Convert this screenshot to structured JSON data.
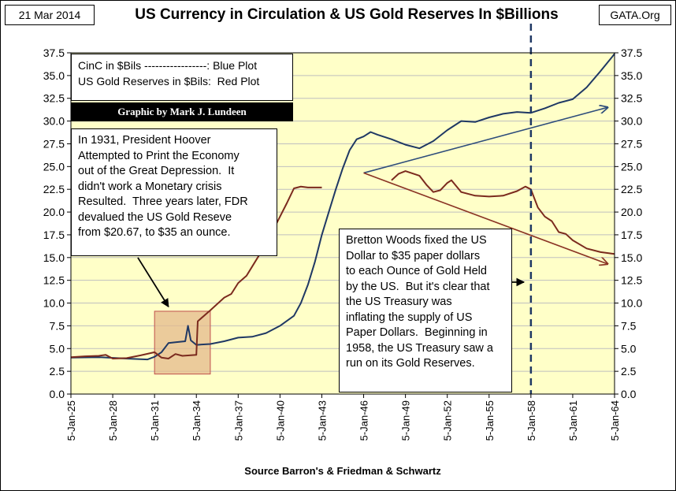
{
  "header": {
    "date": "21 Mar 2014",
    "title": "US Currency in Circulation & US Gold Reserves In $Billions",
    "source": "GATA.Org"
  },
  "legend_box": {
    "line1": "CinC in $Bils -----------------: Blue Plot",
    "line2": "US Gold Reserves in $Bils:  Red Plot"
  },
  "credit": "Graphic by Mark J. Lundeen",
  "annotation_hoover": {
    "lines": [
      "In 1931, President Hoover",
      "Attempted to Print the Economy",
      "out of the Great Depression.  It",
      "didn't work a Monetary crisis",
      "Resulted.  Three years later, FDR",
      "devalued the US Gold Reseve",
      "from $20.67, to $35 an ounce."
    ]
  },
  "annotation_bretton": {
    "lines": [
      "Bretton Woods fixed the US",
      "Dollar to $35 paper dollars",
      "to each Ounce of Gold Held",
      "by the US.  But it's clear that",
      "the US Treasury was",
      "inflating the supply of US",
      "Paper Dollars.  Beginning in",
      "1958, the US Treasury saw a",
      "run on its Gold Reserves."
    ]
  },
  "colors": {
    "plot_bg": "#ffffc8",
    "currency": "#1f3864",
    "gold": "#7b2a1e",
    "highlight_fill": "#e4b98c",
    "highlight_stroke": "#c0504d",
    "grid": "#bfbfbf",
    "trend_blue": "#2e4d7b",
    "trend_red": "#8a3324"
  },
  "chart_data": {
    "type": "line",
    "title": "US Currency in Circulation & US Gold Reserves In $Billions",
    "xlabel": "Source Barron's & Friedman & Schwartz",
    "ylabel": "",
    "x_range": [
      1925.0,
      1964.0
    ],
    "ylim": [
      0,
      37.5
    ],
    "y_ticks": [
      0.0,
      2.5,
      5.0,
      7.5,
      10.0,
      12.5,
      15.0,
      17.5,
      20.0,
      22.5,
      25.0,
      27.5,
      30.0,
      32.5,
      35.0,
      37.5
    ],
    "y_tick_labels": [
      "0.0",
      "2.5",
      "5.0",
      "7.5",
      "10.0",
      "12.5",
      "15.0",
      "17.5",
      "20.0",
      "22.5",
      "25.0",
      "27.5",
      "30.0",
      "32.5",
      "35.0",
      "37.5"
    ],
    "x_ticks": [
      1925,
      1928,
      1931,
      1934,
      1937,
      1940,
      1943,
      1946,
      1949,
      1952,
      1955,
      1958,
      1961,
      1964
    ],
    "x_tick_labels": [
      "5-Jan-25",
      "5-Jan-28",
      "5-Jan-31",
      "5-Jan-34",
      "5-Jan-37",
      "5-Jan-40",
      "5-Jan-43",
      "5-Jan-46",
      "5-Jan-49",
      "5-Jan-52",
      "5-Jan-55",
      "5-Jan-58",
      "5-Jan-61",
      "5-Jan-64"
    ],
    "grid": true,
    "series": [
      {
        "name": "CinC in $Bils",
        "color": "blue",
        "points": [
          [
            1925.0,
            4.0
          ],
          [
            1927.0,
            4.05
          ],
          [
            1929.0,
            3.9
          ],
          [
            1930.5,
            3.8
          ],
          [
            1931.0,
            4.1
          ],
          [
            1931.5,
            4.6
          ],
          [
            1932.0,
            5.6
          ],
          [
            1932.5,
            5.7
          ],
          [
            1933.2,
            5.8
          ],
          [
            1933.4,
            7.5
          ],
          [
            1933.6,
            5.9
          ],
          [
            1934.0,
            5.4
          ],
          [
            1935.0,
            5.5
          ],
          [
            1936.0,
            5.8
          ],
          [
            1937.0,
            6.2
          ],
          [
            1938.0,
            6.3
          ],
          [
            1939.0,
            6.7
          ],
          [
            1940.0,
            7.5
          ],
          [
            1941.0,
            8.6
          ],
          [
            1941.5,
            10.0
          ],
          [
            1942.0,
            12.0
          ],
          [
            1942.5,
            14.5
          ],
          [
            1943.0,
            17.5
          ],
          [
            1943.5,
            20.0
          ],
          [
            1944.0,
            22.5
          ],
          [
            1944.5,
            24.8
          ],
          [
            1945.0,
            26.8
          ],
          [
            1945.5,
            28.0
          ],
          [
            1946.0,
            28.3
          ],
          [
            1946.5,
            28.8
          ],
          [
            1947.0,
            28.5
          ],
          [
            1948.0,
            28.0
          ],
          [
            1949.0,
            27.4
          ],
          [
            1950.0,
            27.0
          ],
          [
            1951.0,
            27.8
          ],
          [
            1952.0,
            29.0
          ],
          [
            1953.0,
            30.0
          ],
          [
            1954.0,
            29.9
          ],
          [
            1955.0,
            30.4
          ],
          [
            1956.0,
            30.8
          ],
          [
            1957.0,
            31.0
          ],
          [
            1958.0,
            30.9
          ],
          [
            1959.0,
            31.4
          ],
          [
            1960.0,
            32.0
          ],
          [
            1961.0,
            32.4
          ],
          [
            1962.0,
            33.7
          ],
          [
            1963.0,
            35.5
          ],
          [
            1963.8,
            37.0
          ],
          [
            1964.0,
            37.4
          ]
        ]
      },
      {
        "name": "US Gold Reserves in $Bils",
        "color": "red",
        "points": [
          [
            1925.0,
            4.05
          ],
          [
            1926.0,
            4.15
          ],
          [
            1927.0,
            4.2
          ],
          [
            1927.5,
            4.3
          ],
          [
            1928.0,
            3.9
          ],
          [
            1929.0,
            3.95
          ],
          [
            1930.0,
            4.25
          ],
          [
            1931.0,
            4.6
          ],
          [
            1931.5,
            4.0
          ],
          [
            1932.0,
            3.9
          ],
          [
            1932.5,
            4.4
          ],
          [
            1933.0,
            4.2
          ],
          [
            1934.0,
            4.3
          ],
          [
            1934.1,
            8.0
          ],
          [
            1935.0,
            9.2
          ],
          [
            1936.0,
            10.6
          ],
          [
            1936.5,
            11.0
          ],
          [
            1937.0,
            12.2
          ],
          [
            1937.6,
            13.0
          ],
          [
            1938.0,
            14.0
          ],
          [
            1939.0,
            16.5
          ],
          [
            1940.0,
            19.5
          ],
          [
            1940.5,
            21.0
          ],
          [
            1941.0,
            22.6
          ],
          [
            1941.5,
            22.8
          ],
          [
            1942.0,
            22.7
          ],
          [
            1943.0,
            22.7
          ]
        ]
      },
      {
        "name": "US Gold Reserves in $Bils (postwar)",
        "color": "red",
        "points": [
          [
            1948.0,
            23.5
          ],
          [
            1948.5,
            24.2
          ],
          [
            1949.0,
            24.5
          ],
          [
            1950.0,
            24.0
          ],
          [
            1950.5,
            23.0
          ],
          [
            1951.0,
            22.2
          ],
          [
            1951.5,
            22.4
          ],
          [
            1952.0,
            23.2
          ],
          [
            1952.3,
            23.5
          ],
          [
            1953.0,
            22.2
          ],
          [
            1954.0,
            21.8
          ],
          [
            1955.0,
            21.7
          ],
          [
            1956.0,
            21.8
          ],
          [
            1957.0,
            22.3
          ],
          [
            1957.6,
            22.8
          ],
          [
            1958.0,
            22.5
          ],
          [
            1958.5,
            20.5
          ],
          [
            1959.0,
            19.5
          ],
          [
            1959.5,
            19.0
          ],
          [
            1960.0,
            17.8
          ],
          [
            1960.5,
            17.6
          ],
          [
            1961.0,
            16.9
          ],
          [
            1962.0,
            16.0
          ],
          [
            1963.0,
            15.6
          ],
          [
            1964.0,
            15.4
          ]
        ]
      }
    ],
    "trend_lines": [
      {
        "name": "currency-trend",
        "from": [
          1946.0,
          24.3
        ],
        "to": [
          1963.5,
          31.5
        ],
        "color": "blue"
      },
      {
        "name": "gold-trend",
        "from": [
          1946.0,
          24.3
        ],
        "to": [
          1963.5,
          14.3
        ],
        "color": "red"
      }
    ],
    "vline": {
      "x": 1958.0,
      "style": "dashed"
    },
    "highlight_region": {
      "x0": 1931.0,
      "x1": 1935.0,
      "y0": 2.2,
      "y1": 9.1
    },
    "arrows": [
      {
        "name": "hoover-arrow",
        "from": [
          1929.8,
          15.0
        ],
        "to": [
          1932.0,
          9.6
        ]
      },
      {
        "name": "bretton-arrow",
        "from": [
          1955.5,
          12.3
        ],
        "to": [
          1957.5,
          12.3
        ]
      }
    ]
  }
}
